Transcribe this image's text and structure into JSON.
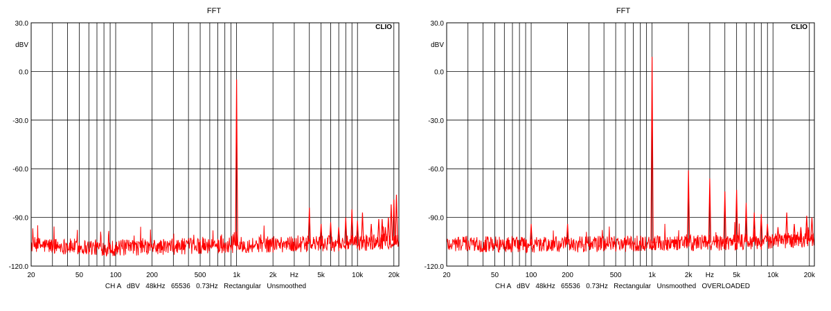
{
  "chart_data": [
    {
      "type": "line",
      "title": "FFT",
      "ylabel": "dBV",
      "xlabel": "Hz",
      "brand": "CLIO",
      "footer": "CH A   dBV   48kHz   65536   0.73Hz   Rectangular   Unsmoothed",
      "xscale": "log",
      "xlim": [
        20,
        22000
      ],
      "ylim": [
        -120,
        30
      ],
      "grid": true,
      "x_tick_labels": [
        "20",
        "50",
        "100",
        "200",
        "500",
        "1k",
        "2k",
        "Hz",
        "5k",
        "10k",
        "20k"
      ],
      "y_tick_labels": [
        "30.0",
        "0.0",
        "-30.0",
        "-60.0",
        "-90.0",
        "-120.0"
      ],
      "series": [
        {
          "color": "#ff0000",
          "noise_floor": {
            "x": [
              20,
              100,
              1000,
              10000,
              22000
            ],
            "y": [
              -107,
              -109,
              -107,
              -106,
              -104
            ]
          },
          "peaks": {
            "x": [
              1000,
              4000,
              5000,
              6000,
              7000,
              8000,
              9000,
              10000,
              11000,
              13000,
              15000,
              16000,
              17000,
              18000,
              19000,
              20000,
              21000
            ],
            "y": [
              -5,
              -84,
              -94,
              -93,
              -96,
              -90,
              -85,
              -92,
              -87,
              -94,
              -91,
              -91,
              -96,
              -90,
              -82,
              -79,
              -76
            ]
          }
        }
      ]
    },
    {
      "type": "line",
      "title": "FFT",
      "ylabel": "dBV",
      "xlabel": "Hz",
      "brand": "CLIO",
      "footer": "CH A   dBV   48kHz   65536   0.73Hz   Rectangular   Unsmoothed   OVERLOADED",
      "xscale": "log",
      "xlim": [
        20,
        22000
      ],
      "ylim": [
        -120,
        30
      ],
      "grid": true,
      "x_tick_labels": [
        "20",
        "50",
        "100",
        "200",
        "500",
        "1k",
        "2k",
        "Hz",
        "5k",
        "10k",
        "20k"
      ],
      "y_tick_labels": [
        "30.0",
        "0.0",
        "-30.0",
        "-60.0",
        "-90.0",
        "-120.0"
      ],
      "series": [
        {
          "color": "#ff0000",
          "noise_floor": {
            "x": [
              20,
              100,
              1000,
              10000,
              22000
            ],
            "y": [
              -106,
              -107,
              -106,
              -105,
              -103
            ]
          },
          "peaks": {
            "x": [
              100,
              200,
              1000,
              2000,
              3000,
              4000,
              5000,
              6000,
              7000,
              8000,
              9000,
              11000,
              13000,
              15000,
              17000,
              19000,
              21000
            ],
            "y": [
              -94,
              -94,
              9,
              -61,
              -66,
              -74,
              -73,
              -81,
              -87,
              -88,
              -94,
              -96,
              -87,
              -94,
              -96,
              -89,
              -90
            ]
          }
        }
      ]
    }
  ]
}
